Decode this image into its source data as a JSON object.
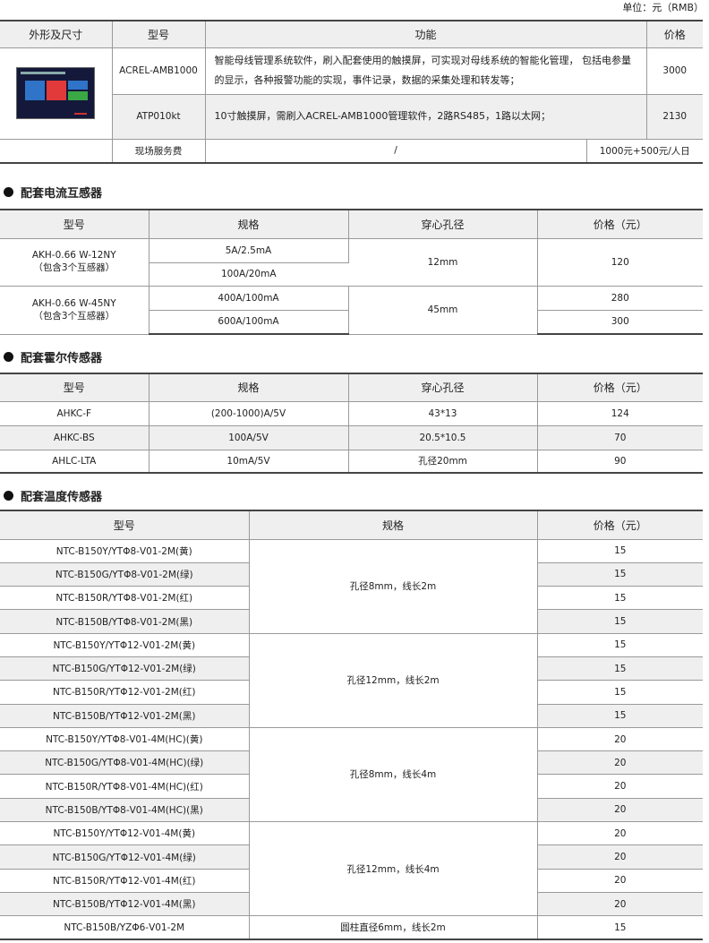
{
  "unit_note": "单位：元（RMB）",
  "main_table": {
    "headers": [
      "外形及尺寸",
      "型号",
      "功能",
      "价格"
    ],
    "rows": [
      {
        "model": "ACREL-AMB1000",
        "function": "智能母线管理系统软件，刷入配套使用的触摸屏，可实现对母线系统的智能化管理， 包括电参量的显示，各种报警功能的实现，事件记录，数据的采集处理和转发等；",
        "price": "3000"
      },
      {
        "model": "ATP010kt",
        "function": "10寸触摸屏，需刷入ACREL-AMB1000管理软件，2路RS485，1路以太网；",
        "price": "2130"
      }
    ],
    "service": {
      "label": "现场服务费",
      "function": "/",
      "price": "1000元+500元/人日"
    }
  },
  "ct_section": {
    "title": "配套电流互感器",
    "headers": [
      "型号",
      "规格",
      "穿心孔径",
      "价格（元）"
    ],
    "groups": [
      {
        "model": "AKH-0.66 W-12NY",
        "note": "（包含3个互感器）",
        "specs": [
          "5A/2.5mA",
          "100A/20mA"
        ],
        "hole": "12mm",
        "prices": [
          "120"
        ]
      },
      {
        "model": "AKH-0.66 W-45NY",
        "note": "（包含3个互感器）",
        "specs": [
          "400A/100mA",
          "600A/100mA"
        ],
        "hole": "45mm",
        "prices": [
          "280",
          "300"
        ]
      }
    ]
  },
  "hall_section": {
    "title": "配套霍尔传感器",
    "headers": [
      "型号",
      "规格",
      "穿心孔径",
      "价格（元）"
    ],
    "rows": [
      {
        "model": "AHKC-F",
        "spec": "(200-1000)A/5V",
        "hole": "43*13",
        "price": "124"
      },
      {
        "model": "AHKC-BS",
        "spec": "100A/5V",
        "hole": "20.5*10.5",
        "price": "70"
      },
      {
        "model": "AHLC-LTA",
        "spec": "10mA/5V",
        "hole": "孔径20mm",
        "price": "90"
      }
    ]
  },
  "temp_section": {
    "title": "配套温度传感器",
    "headers": [
      "型号",
      "规格",
      "价格（元）"
    ],
    "groups": [
      {
        "spec": "孔径8mm，线长2m",
        "rows": [
          [
            "NTC-B150Y/YTΦ8-V01-2M(黄)",
            "15"
          ],
          [
            "NTC-B150G/YTΦ8-V01-2M(绿)",
            "15"
          ],
          [
            "NTC-B150R/YTΦ8-V01-2M(红)",
            "15"
          ],
          [
            "NTC-B150B/YTΦ8-V01-2M(黑)",
            "15"
          ]
        ]
      },
      {
        "spec": "孔径12mm，线长2m",
        "rows": [
          [
            "NTC-B150Y/YTΦ12-V01-2M(黄)",
            "15"
          ],
          [
            "NTC-B150G/YTΦ12-V01-2M(绿)",
            "15"
          ],
          [
            "NTC-B150R/YTΦ12-V01-2M(红)",
            "15"
          ],
          [
            "NTC-B150B/YTΦ12-V01-2M(黑)",
            "15"
          ]
        ]
      },
      {
        "spec": "孔径8mm，线长4m",
        "rows": [
          [
            "NTC-B150Y/YTΦ8-V01-4M(HC)(黄)",
            "20"
          ],
          [
            "NTC-B150G/YTΦ8-V01-4M(HC)(绿)",
            "20"
          ],
          [
            "NTC-B150R/YTΦ8-V01-4M(HC)(红)",
            "20"
          ],
          [
            "NTC-B150B/YTΦ8-V01-4M(HC)(黑)",
            "20"
          ]
        ]
      },
      {
        "spec": "孔径12mm，线长4m",
        "rows": [
          [
            "NTC-B150Y/YTΦ12-V01-4M(黄)",
            "20"
          ],
          [
            "NTC-B150G/YTΦ12-V01-4M(绿)",
            "20"
          ],
          [
            "NTC-B150R/YTΦ12-V01-4M(红)",
            "20"
          ],
          [
            "NTC-B150B/YTΦ12-V01-4M(黑)",
            "20"
          ]
        ]
      },
      {
        "spec": "圆柱直径6mm，线长2m",
        "rows": [
          [
            "NTC-B150B/YZΦ6-V01-2M",
            "15"
          ]
        ]
      }
    ]
  }
}
